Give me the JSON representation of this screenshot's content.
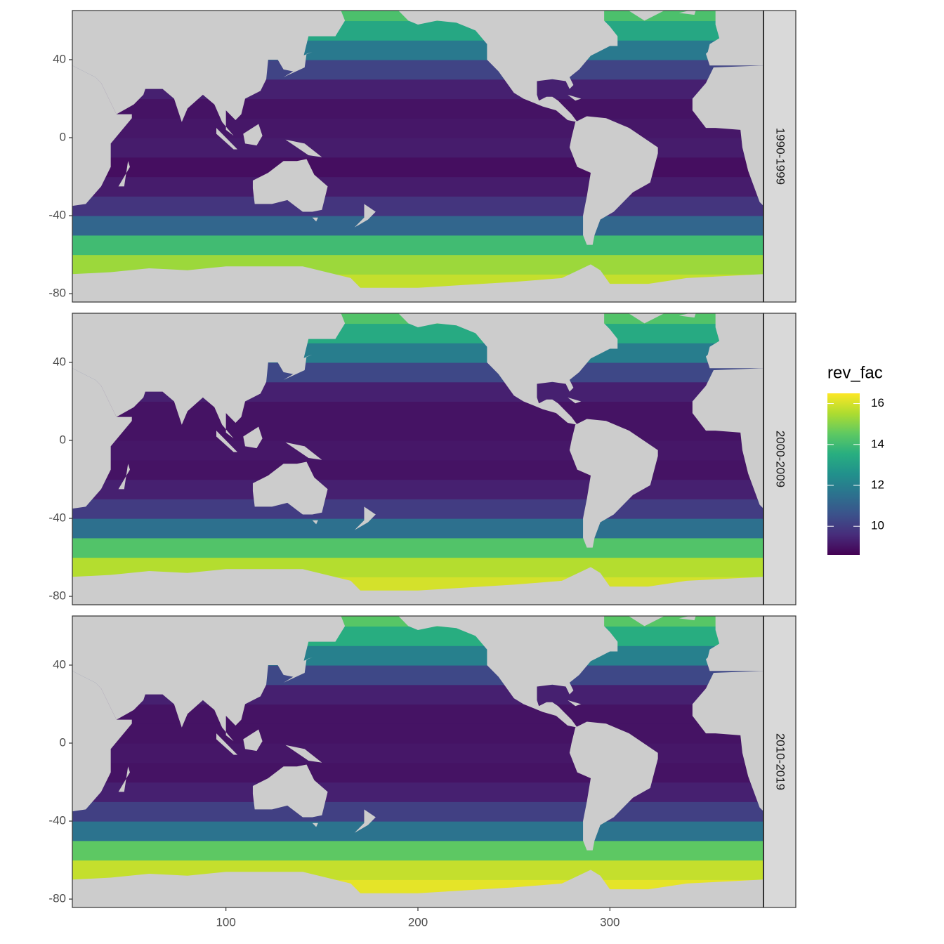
{
  "chart_data": {
    "type": "heatmap",
    "xlim": [
      20,
      380
    ],
    "ylim": [
      -84.3,
      65.2
    ],
    "xticks": [
      100,
      200,
      300
    ],
    "yticks": [
      -80,
      -40,
      0,
      40
    ],
    "lat_edges": [
      -80,
      -70,
      -60,
      -50,
      -40,
      -30,
      -20,
      -10,
      0,
      10,
      20,
      30,
      40,
      50,
      60,
      65
    ],
    "panels": [
      {
        "name": "1990-1999",
        "values": [
          15.8,
          15.3,
          14.0,
          11.2,
          9.8,
          9.2,
          8.9,
          9.2,
          9.1,
          9.0,
          9.3,
          10.2,
          11.8,
          13.3,
          14.2
        ]
      },
      {
        "name": "2000-2009",
        "values": [
          16.0,
          15.6,
          14.3,
          11.5,
          10.0,
          9.3,
          9.0,
          9.1,
          9.0,
          9.0,
          9.3,
          10.3,
          11.9,
          13.4,
          14.3
        ]
      },
      {
        "name": "2010-2019",
        "values": [
          16.2,
          15.8,
          14.5,
          11.6,
          10.1,
          9.3,
          9.0,
          9.1,
          9.0,
          9.0,
          9.3,
          10.3,
          12.0,
          13.5,
          14.4
        ]
      }
    ],
    "legend": {
      "title": "rev_fac",
      "lim": [
        8.6,
        16.5
      ],
      "ticks": [
        10,
        12,
        14,
        16
      ]
    },
    "colormap": [
      "#440154",
      "#472d7b",
      "#3b528b",
      "#2c728e",
      "#21918c",
      "#28ae80",
      "#5ec962",
      "#addc30",
      "#fde725"
    ],
    "land_color": "#cccccc"
  }
}
